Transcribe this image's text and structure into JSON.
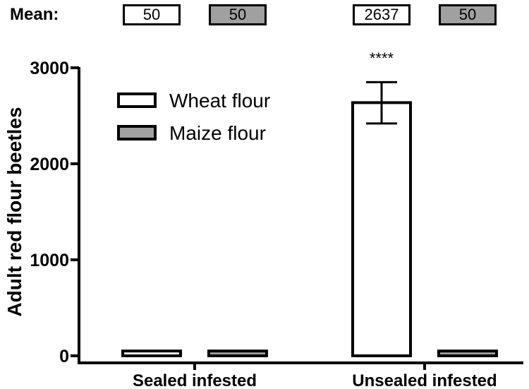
{
  "mean_row": {
    "label": "Mean:",
    "values": [
      {
        "text": "50",
        "fill": "#ffffff"
      },
      {
        "text": "50",
        "fill": "#a0a0a0"
      },
      {
        "text": "2637",
        "fill": "#ffffff"
      },
      {
        "text": "50",
        "fill": "#a0a0a0"
      }
    ]
  },
  "chart_data": {
    "type": "bar",
    "categories": [
      "Sealed infested",
      "Unsealed infested"
    ],
    "series": [
      {
        "name": "Wheat flour",
        "color": "#ffffff",
        "values": [
          50,
          2637
        ],
        "error": [
          null,
          [
            2420,
            2850
          ]
        ]
      },
      {
        "name": "Maize flour",
        "color": "#a0a0a0",
        "values": [
          50,
          50
        ],
        "error": [
          null,
          null
        ]
      }
    ],
    "ylabel": "Adult red flour beetles",
    "ylim": [
      0,
      3000
    ],
    "yticks": [
      0,
      1000,
      2000,
      3000
    ],
    "annotations": [
      {
        "category": "Unsealed infested",
        "series": "Wheat flour",
        "text": "****"
      }
    ],
    "legend_position": "top-left",
    "grid": false
  }
}
